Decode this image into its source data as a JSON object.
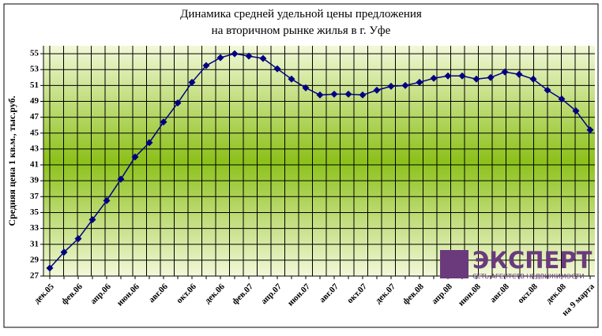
{
  "chart_data": {
    "type": "line",
    "title": [
      "Динамика средней удельной цены предложения",
      "на вторичном рынке жилья в г. Уфе"
    ],
    "y_label": "Средняя цена 1 кв.м., тыс.руб.",
    "categories": [
      "дек.05",
      null,
      "фев.06",
      null,
      "апр.06",
      null,
      "июн.06",
      null,
      "авг.06",
      null,
      "окт.06",
      null,
      "дек.06",
      null,
      "фев.07",
      null,
      "апр.07",
      null,
      "июн.07",
      null,
      "авг.07",
      null,
      "окт.07",
      null,
      "дек.07",
      null,
      "фев.08",
      null,
      "апр.08",
      null,
      "июн.08",
      null,
      "авг.08",
      null,
      "окт.08",
      null,
      "дек.08",
      null,
      "на 9 марта"
    ],
    "series": [
      {
        "name": "Средняя цена",
        "color": "#000080",
        "values": [
          28.0,
          30.0,
          31.7,
          34.1,
          36.5,
          39.2,
          42.0,
          43.8,
          46.4,
          48.8,
          51.4,
          53.5,
          54.5,
          55.0,
          54.7,
          54.4,
          53.1,
          51.8,
          50.7,
          49.8,
          49.9,
          49.9,
          49.8,
          50.4,
          50.9,
          51.0,
          51.4,
          51.9,
          52.2,
          52.2,
          51.8,
          52.0,
          52.7,
          52.4,
          51.8,
          50.4,
          49.3,
          47.8,
          45.4
        ]
      }
    ],
    "ylim": [
      27,
      56
    ],
    "yticks": [
      27,
      29,
      31,
      33,
      35,
      37,
      39,
      41,
      43,
      45,
      47,
      49,
      51,
      53,
      55
    ],
    "grid": true
  },
  "logo": {
    "name": "ЭКСПЕРТ",
    "tagline": "СЕТЬ АГЕНТСТВ НЕДВИЖИМОСТИ"
  }
}
